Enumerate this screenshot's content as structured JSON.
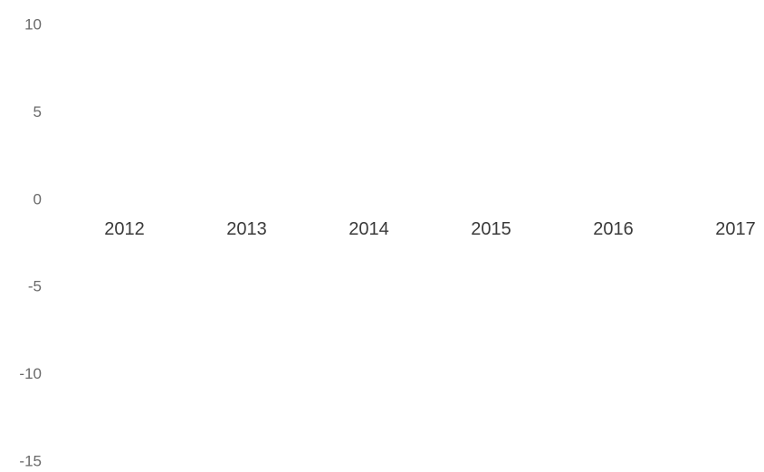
{
  "chart_data": {
    "type": "bar",
    "categories": [
      "2012",
      "2013",
      "2014",
      "2015",
      "2016",
      "2017"
    ],
    "ylim": [
      -15,
      10
    ],
    "yticks": [
      -15,
      -10,
      -5,
      0,
      5,
      10
    ],
    "grid": false
  }
}
